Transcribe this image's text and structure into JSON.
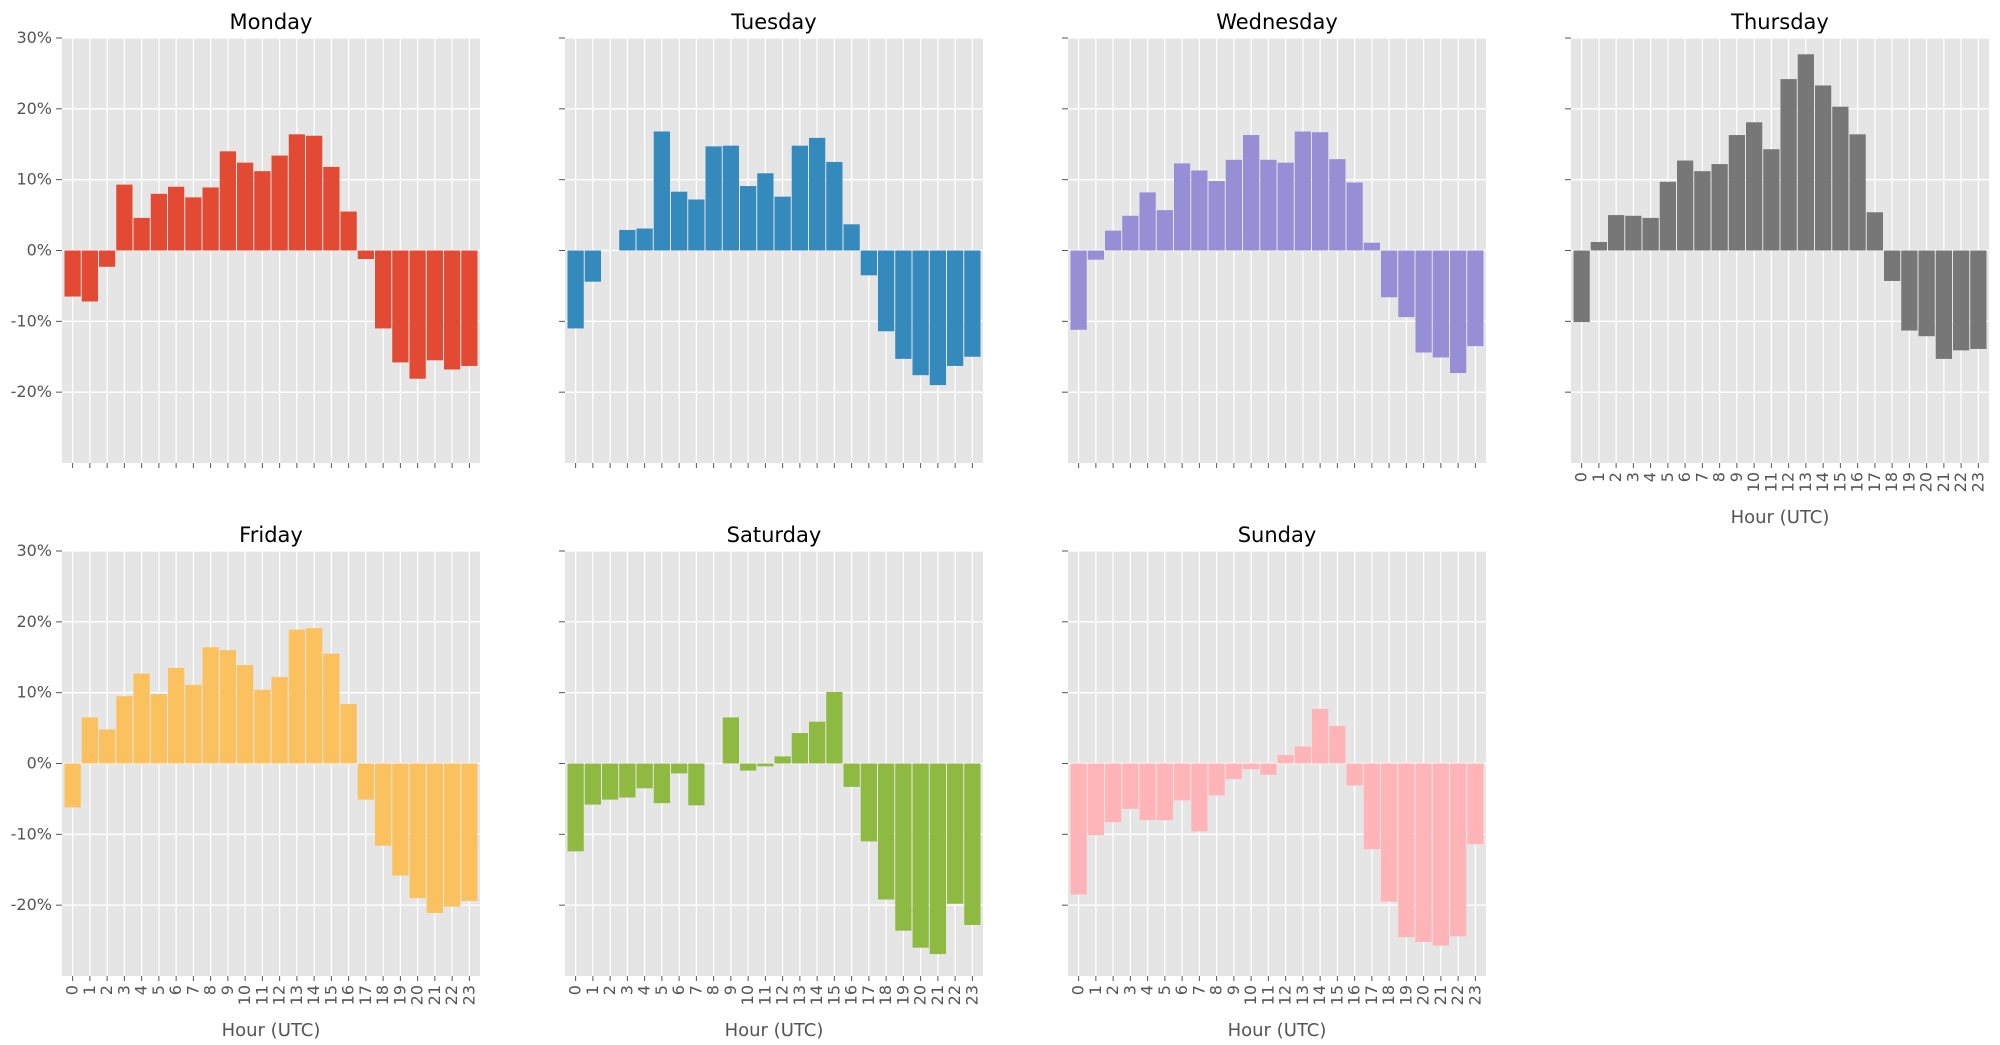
{
  "figure": {
    "ylim": [
      -30,
      30
    ],
    "yticks": [
      "30%",
      "20%",
      "10%",
      "0%",
      "-10%",
      "-20%"
    ],
    "ytick_values": [
      30,
      20,
      10,
      0,
      -10,
      -20
    ],
    "hours": [
      "0",
      "1",
      "2",
      "3",
      "4",
      "5",
      "6",
      "7",
      "8",
      "9",
      "10",
      "11",
      "12",
      "13",
      "14",
      "15",
      "16",
      "17",
      "18",
      "19",
      "20",
      "21",
      "22",
      "23"
    ],
    "xlabel": "Hour (UTC)",
    "plot_background": "#e5e5e5",
    "grid_color": "#ffffff",
    "text_color": "#555555",
    "title_color": "#000000"
  },
  "chart_data": [
    {
      "type": "bar",
      "title": "Monday",
      "color": "#e24a33",
      "xlabel": "",
      "show_xticklabels": false,
      "show_yticklabels": true,
      "categories": [
        "0",
        "1",
        "2",
        "3",
        "4",
        "5",
        "6",
        "7",
        "8",
        "9",
        "10",
        "11",
        "12",
        "13",
        "14",
        "15",
        "16",
        "17",
        "18",
        "19",
        "20",
        "21",
        "22",
        "23"
      ],
      "values": [
        -6.5,
        -7.2,
        -2.3,
        9.3,
        4.6,
        8.0,
        9.0,
        7.5,
        8.9,
        14.0,
        12.4,
        11.2,
        13.4,
        16.4,
        16.2,
        11.8,
        5.5,
        -1.2,
        -11.0,
        -15.8,
        -18.1,
        -15.5,
        -16.8,
        -16.3
      ]
    },
    {
      "type": "bar",
      "title": "Tuesday",
      "color": "#348abd",
      "xlabel": "",
      "show_xticklabels": false,
      "show_yticklabels": false,
      "categories": [
        "0",
        "1",
        "2",
        "3",
        "4",
        "5",
        "6",
        "7",
        "8",
        "9",
        "10",
        "11",
        "12",
        "13",
        "14",
        "15",
        "16",
        "17",
        "18",
        "19",
        "20",
        "21",
        "22",
        "23"
      ],
      "values": [
        -11.0,
        -4.4,
        0.0,
        2.9,
        3.1,
        16.8,
        8.3,
        7.2,
        14.7,
        14.8,
        9.1,
        10.9,
        7.6,
        14.8,
        15.9,
        12.5,
        3.7,
        -3.5,
        -11.4,
        -15.3,
        -17.6,
        -19.0,
        -16.3,
        -15.0
      ]
    },
    {
      "type": "bar",
      "title": "Wednesday",
      "color": "#988ed5",
      "xlabel": "",
      "show_xticklabels": false,
      "show_yticklabels": false,
      "categories": [
        "0",
        "1",
        "2",
        "3",
        "4",
        "5",
        "6",
        "7",
        "8",
        "9",
        "10",
        "11",
        "12",
        "13",
        "14",
        "15",
        "16",
        "17",
        "18",
        "19",
        "20",
        "21",
        "22",
        "23"
      ],
      "values": [
        -11.2,
        -1.3,
        2.8,
        4.9,
        8.2,
        5.7,
        12.3,
        11.3,
        9.8,
        12.8,
        16.3,
        12.8,
        12.4,
        16.8,
        16.7,
        12.9,
        9.6,
        1.1,
        -6.6,
        -9.4,
        -14.4,
        -15.1,
        -17.3,
        -13.5
      ]
    },
    {
      "type": "bar",
      "title": "Thursday",
      "color": "#777777",
      "xlabel": "Hour (UTC)",
      "show_xticklabels": true,
      "show_yticklabels": false,
      "categories": [
        "0",
        "1",
        "2",
        "3",
        "4",
        "5",
        "6",
        "7",
        "8",
        "9",
        "10",
        "11",
        "12",
        "13",
        "14",
        "15",
        "16",
        "17",
        "18",
        "19",
        "20",
        "21",
        "22",
        "23"
      ],
      "values": [
        -10.1,
        1.2,
        5.0,
        4.9,
        4.6,
        9.7,
        12.7,
        11.2,
        12.2,
        16.3,
        18.1,
        14.3,
        24.2,
        27.7,
        23.3,
        20.3,
        16.4,
        5.4,
        -4.3,
        -11.3,
        -12.1,
        -15.3,
        -14.1,
        -13.9
      ]
    },
    {
      "type": "bar",
      "title": "Friday",
      "color": "#fbc15e",
      "xlabel": "Hour (UTC)",
      "show_xticklabels": true,
      "show_yticklabels": true,
      "categories": [
        "0",
        "1",
        "2",
        "3",
        "4",
        "5",
        "6",
        "7",
        "8",
        "9",
        "10",
        "11",
        "12",
        "13",
        "14",
        "15",
        "16",
        "17",
        "18",
        "19",
        "20",
        "21",
        "22",
        "23"
      ],
      "values": [
        -6.2,
        6.5,
        4.8,
        9.5,
        12.7,
        9.8,
        13.5,
        11.1,
        16.4,
        16.0,
        13.9,
        10.4,
        12.2,
        18.9,
        19.1,
        15.5,
        8.4,
        -5.1,
        -11.6,
        -15.8,
        -19.0,
        -21.1,
        -20.2,
        -19.4
      ]
    },
    {
      "type": "bar",
      "title": "Saturday",
      "color": "#8eba42",
      "xlabel": "Hour (UTC)",
      "show_xticklabels": true,
      "show_yticklabels": false,
      "categories": [
        "0",
        "1",
        "2",
        "3",
        "4",
        "5",
        "6",
        "7",
        "8",
        "9",
        "10",
        "11",
        "12",
        "13",
        "14",
        "15",
        "16",
        "17",
        "18",
        "19",
        "20",
        "21",
        "22",
        "23"
      ],
      "values": [
        -12.4,
        -5.8,
        -5.1,
        -4.8,
        -3.5,
        -5.6,
        -1.4,
        -5.9,
        0.0,
        6.5,
        -1.0,
        -0.4,
        1.0,
        4.3,
        5.9,
        10.1,
        -3.3,
        -11.0,
        -19.2,
        -23.6,
        -26.0,
        -26.9,
        -19.8,
        -22.8
      ]
    },
    {
      "type": "bar",
      "title": "Sunday",
      "color": "#ffb5b8",
      "xlabel": "Hour (UTC)",
      "show_xticklabels": true,
      "show_yticklabels": false,
      "categories": [
        "0",
        "1",
        "2",
        "3",
        "4",
        "5",
        "6",
        "7",
        "8",
        "9",
        "10",
        "11",
        "12",
        "13",
        "14",
        "15",
        "16",
        "17",
        "18",
        "19",
        "20",
        "21",
        "22",
        "23"
      ],
      "values": [
        -18.5,
        -10.1,
        -8.3,
        -6.4,
        -8.0,
        -8.0,
        -5.2,
        -9.6,
        -4.5,
        -2.2,
        -0.8,
        -1.6,
        1.2,
        2.4,
        7.7,
        5.3,
        -3.1,
        -12.1,
        -19.5,
        -24.5,
        -25.2,
        -25.7,
        -24.4,
        -11.4
      ]
    }
  ]
}
